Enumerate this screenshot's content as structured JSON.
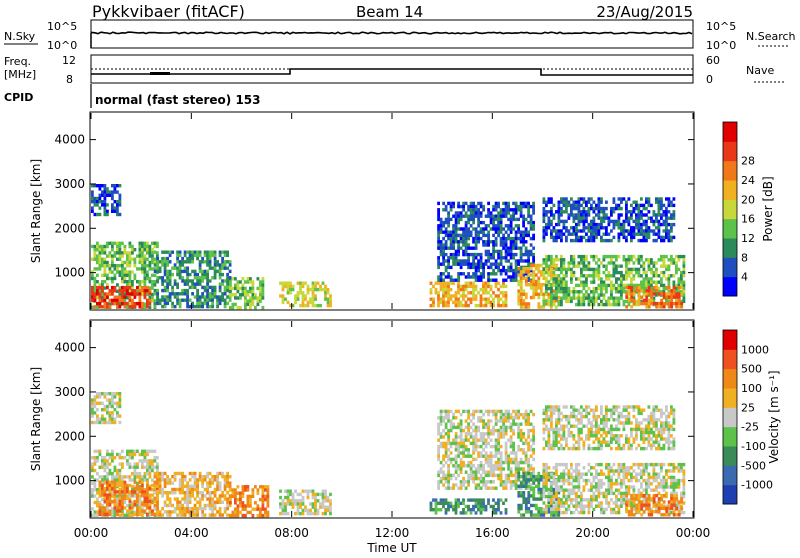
{
  "header": {
    "station": "Pykkvibaer (fitACF)",
    "beam": "Beam 14",
    "date": "23/Aug/2015"
  },
  "noise_panel": {
    "left_label": "N.Sky",
    "right_label": "N.Search",
    "left_ticks": [
      "10^5",
      "10^0"
    ],
    "right_ticks": [
      "10^5",
      "10^0"
    ]
  },
  "freq_panel": {
    "left_label_line1": "Freq.",
    "left_label_line2": "[MHz]",
    "right_label": "Nave",
    "left_ticks": [
      "12",
      "8"
    ],
    "right_ticks": [
      "60",
      "0"
    ]
  },
  "cpid": {
    "label": "CPID",
    "text": "normal (fast stereo) 153"
  },
  "x_axis": {
    "label": "Time UT",
    "ticks": [
      "00:00",
      "04:00",
      "08:00",
      "12:00",
      "16:00",
      "20:00",
      "00:00"
    ]
  },
  "colors": {
    "power": [
      "#0000ff",
      "#1f4fbf",
      "#2a8a5a",
      "#5cc24a",
      "#c8d83a",
      "#f0b020",
      "#f07818",
      "#e83818",
      "#e00000"
    ],
    "velocity": [
      "#1f3fb0",
      "#3a6ab0",
      "#3a8a5a",
      "#5cc24a",
      "#c8c8c8",
      "#f0b020",
      "#f08818",
      "#f05020",
      "#e00000"
    ]
  },
  "chart_data": [
    {
      "type": "heatmap",
      "title": "",
      "xlabel": "Time UT",
      "ylabel": "Slant Range [km]",
      "y_ticks": [
        1000,
        2000,
        3000,
        4000
      ],
      "ylim": [
        180,
        4600
      ],
      "xlim_hours": [
        0,
        24
      ],
      "colorbar": {
        "label": "Power [dB]",
        "ticks": [
          "4",
          "8",
          "12",
          "16",
          "20",
          "24",
          "28"
        ]
      },
      "regions": [
        {
          "t": [
            0.0,
            2.6
          ],
          "r": [
            250,
            1700
          ],
          "level": 3
        },
        {
          "t": [
            0.0,
            2.3
          ],
          "r": [
            250,
            700
          ],
          "level": 7
        },
        {
          "t": [
            0.0,
            1.1
          ],
          "r": [
            2300,
            3000
          ],
          "level": 1
        },
        {
          "t": [
            2.5,
            5.5
          ],
          "r": [
            250,
            1500
          ],
          "level": 2
        },
        {
          "t": [
            5.5,
            6.8
          ],
          "r": [
            250,
            900
          ],
          "level": 3
        },
        {
          "t": [
            7.5,
            9.5
          ],
          "r": [
            250,
            800
          ],
          "level": 4
        },
        {
          "t": [
            13.5,
            16.5
          ],
          "r": [
            250,
            800
          ],
          "level": 5
        },
        {
          "t": [
            13.8,
            17.6
          ],
          "r": [
            800,
            2600
          ],
          "level": 1
        },
        {
          "t": [
            17.0,
            18.6
          ],
          "r": [
            250,
            1200
          ],
          "level": 5
        },
        {
          "t": [
            18.0,
            23.2
          ],
          "r": [
            1700,
            2700
          ],
          "level": 1
        },
        {
          "t": [
            18.0,
            23.6
          ],
          "r": [
            250,
            1400
          ],
          "level": 3
        },
        {
          "t": [
            21.3,
            23.5
          ],
          "r": [
            250,
            700
          ],
          "level": 6
        }
      ]
    },
    {
      "type": "heatmap",
      "title": "",
      "xlabel": "Time UT",
      "ylabel": "Slant Range [km]",
      "y_ticks": [
        1000,
        2000,
        3000,
        4000
      ],
      "ylim": [
        180,
        4600
      ],
      "xlim_hours": [
        0,
        24
      ],
      "colorbar": {
        "label": "Velocity [m s⁻¹]",
        "ticks": [
          "1000",
          "500",
          "100",
          "25",
          "-25",
          "-100",
          "-500",
          "-1000"
        ]
      },
      "regions": [
        {
          "t": [
            0.0,
            2.6
          ],
          "r": [
            250,
            1700
          ],
          "level": 4
        },
        {
          "t": [
            0.3,
            2.6
          ],
          "r": [
            250,
            1000
          ],
          "level": 6
        },
        {
          "t": [
            0.0,
            1.1
          ],
          "r": [
            2300,
            3000
          ],
          "level": 4
        },
        {
          "t": [
            2.5,
            5.5
          ],
          "r": [
            250,
            1200
          ],
          "level": 5
        },
        {
          "t": [
            5.5,
            7.0
          ],
          "r": [
            250,
            900
          ],
          "level": 6
        },
        {
          "t": [
            7.5,
            9.5
          ],
          "r": [
            250,
            800
          ],
          "level": 4
        },
        {
          "t": [
            13.5,
            16.5
          ],
          "r": [
            300,
            600
          ],
          "level": 2
        },
        {
          "t": [
            13.8,
            17.6
          ],
          "r": [
            800,
            2600
          ],
          "level": 4
        },
        {
          "t": [
            17.0,
            18.6
          ],
          "r": [
            250,
            1200
          ],
          "level": 2
        },
        {
          "t": [
            18.0,
            23.2
          ],
          "r": [
            1700,
            2700
          ],
          "level": 4
        },
        {
          "t": [
            18.0,
            23.6
          ],
          "r": [
            250,
            1400
          ],
          "level": 4
        },
        {
          "t": [
            21.3,
            23.5
          ],
          "r": [
            250,
            700
          ],
          "level": 6
        }
      ]
    }
  ]
}
